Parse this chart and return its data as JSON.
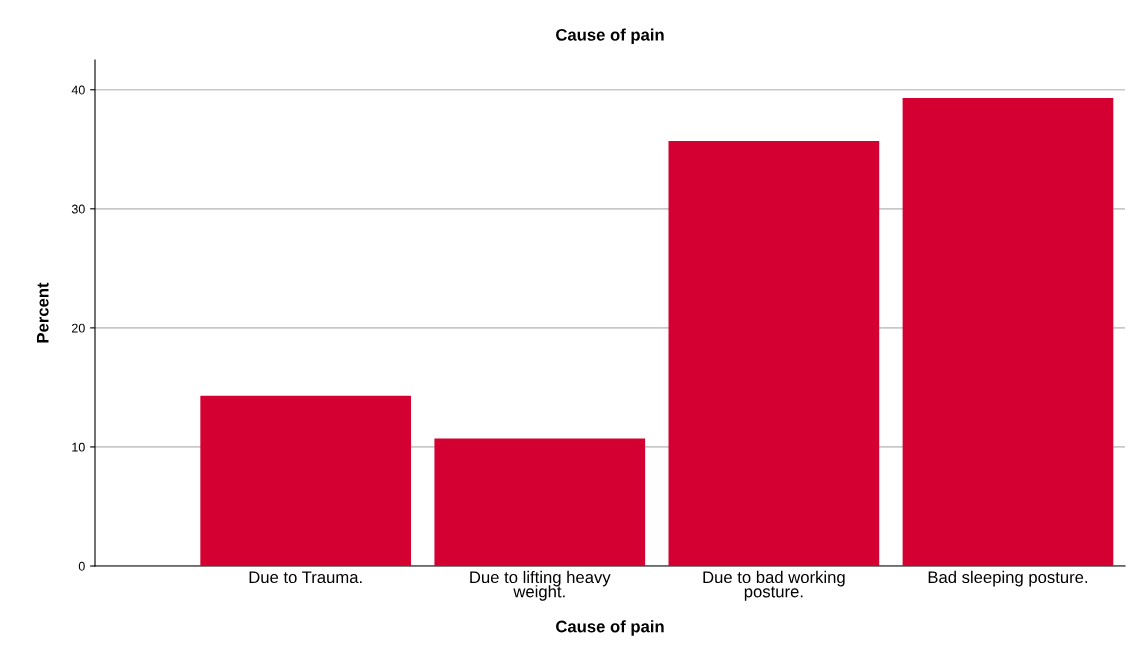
{
  "chart_data": {
    "type": "bar",
    "title": "Cause of pain",
    "xlabel": "Cause of pain",
    "ylabel": "Percent",
    "categories": [
      "Due to Trauma.",
      "Due to lifting heavy\nweight.",
      "Due to bad working\nposture.",
      "Bad sleeping posture."
    ],
    "values": [
      14.3,
      10.7,
      35.7,
      39.3
    ],
    "color": "#d50032",
    "ylim": [
      0,
      42.5
    ],
    "yticks": [
      0,
      10,
      20,
      30,
      40
    ],
    "grid": "y",
    "legend": false
  }
}
